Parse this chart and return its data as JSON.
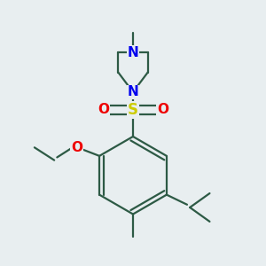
{
  "background_color": "#e8eef0",
  "bond_color": "#2d5a45",
  "N_color": "#0000ee",
  "O_color": "#ee0000",
  "S_color": "#cccc00",
  "line_width": 1.6,
  "figsize": [
    3.0,
    3.0
  ],
  "dpi": 100,
  "xlim": [
    -1.8,
    1.8
  ],
  "ylim": [
    -1.8,
    1.9
  ]
}
